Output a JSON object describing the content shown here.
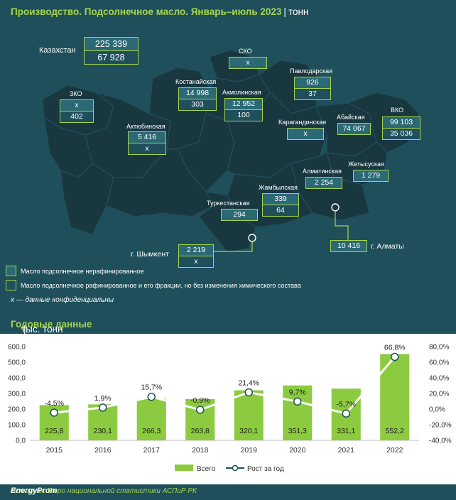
{
  "header": {
    "title": "Производство. Подсолнечное масло. Январь–июль 2023",
    "separator": "|",
    "unit": "тонн"
  },
  "kazakhstan": {
    "label": "Казахстан",
    "unrefined": "225 339",
    "refined": "67 928"
  },
  "regions": [
    {
      "id": "zko",
      "label": "ЗКО",
      "unrefined": "x",
      "refined": "402"
    },
    {
      "id": "aktobe",
      "label": "Актюбинская",
      "unrefined": "5 416",
      "refined": "x"
    },
    {
      "id": "kostanay",
      "label": "Костанайская",
      "unrefined": "14 998",
      "refined": "303"
    },
    {
      "id": "sko",
      "label": "СКО",
      "unrefined": "x",
      "refined": ""
    },
    {
      "id": "akmola",
      "label": "Акмолинская",
      "unrefined": "12 952",
      "refined": "100"
    },
    {
      "id": "pavlodar",
      "label": "Павлодарская",
      "unrefined": "926",
      "refined": "37"
    },
    {
      "id": "karaganda",
      "label": "Карагандинская",
      "unrefined": "x",
      "refined": ""
    },
    {
      "id": "abay",
      "label": "Абайская",
      "unrefined": "74 067",
      "refined": ""
    },
    {
      "id": "vko",
      "label": "ВКО",
      "unrefined": "99 103",
      "refined": "35 036"
    },
    {
      "id": "zhetysu",
      "label": "Жетысуская",
      "unrefined": "1 279",
      "refined": ""
    },
    {
      "id": "almaty_obl",
      "label": "Алматинская",
      "unrefined": "2 254",
      "refined": ""
    },
    {
      "id": "zhambyl",
      "label": "Жамбылская",
      "unrefined": "339",
      "refined": "64"
    },
    {
      "id": "turkestan",
      "label": "Туркестанская",
      "unrefined": "294",
      "refined": ""
    },
    {
      "id": "shymkent",
      "label": "г. Шымкент",
      "unrefined": "2 219",
      "refined": "x"
    },
    {
      "id": "almaty",
      "label": "г. Алматы",
      "unrefined": "10 416",
      "refined": ""
    }
  ],
  "legend": {
    "unrefined": "Масло подсолнечное нерафинированное",
    "refined": "Масло подсолнечное рафинированное и его фракции, но без изменения химического состава"
  },
  "note": "x — данные конфиденциальны",
  "annual": {
    "title": "Годовые данные",
    "separator": "|",
    "unit": "тыс. тонн"
  },
  "chart_data": {
    "type": "bar",
    "categories": [
      "2015",
      "2016",
      "2017",
      "2018",
      "2019",
      "2020",
      "2021",
      "2022"
    ],
    "series": [
      {
        "name": "Всего",
        "type": "bar",
        "axis": "left",
        "values": [
          225.8,
          230.1,
          266.3,
          263.8,
          320.1,
          351.3,
          331.1,
          552.2
        ],
        "labels": [
          "225,8",
          "230,1",
          "266,3",
          "263,8",
          "320,1",
          "351,3",
          "331,1",
          "552,2"
        ]
      },
      {
        "name": "Рост за год",
        "type": "line",
        "axis": "right",
        "values": [
          -4.5,
          1.9,
          15.7,
          -0.9,
          21.4,
          9.7,
          -5.7,
          66.8
        ],
        "labels": [
          "-4,5%",
          "1,9%",
          "15,7%",
          "-0,9%",
          "21,4%",
          "9,7%",
          "-5,7%",
          "66,8%"
        ]
      }
    ],
    "ylim": [
      0,
      600
    ],
    "y2lim": [
      -40,
      80
    ],
    "yticks": [
      "0,0",
      "100,0",
      "200,0",
      "300,0",
      "400,0",
      "500,0",
      "600,0"
    ],
    "y2ticks": [
      "-40,0%",
      "-20,0%",
      "0,0%",
      "20,0%",
      "40,0%",
      "60,0%",
      "80,0%"
    ],
    "legend_position": "bottom",
    "colors": {
      "bar": "#8ccb3f",
      "line": "#ffffff",
      "background": "#1f4f5b",
      "accent": "#a6d64b"
    }
  },
  "source": "Источник: Бюро национальной статистики АСПиР РК",
  "brand": "EnergyProm"
}
